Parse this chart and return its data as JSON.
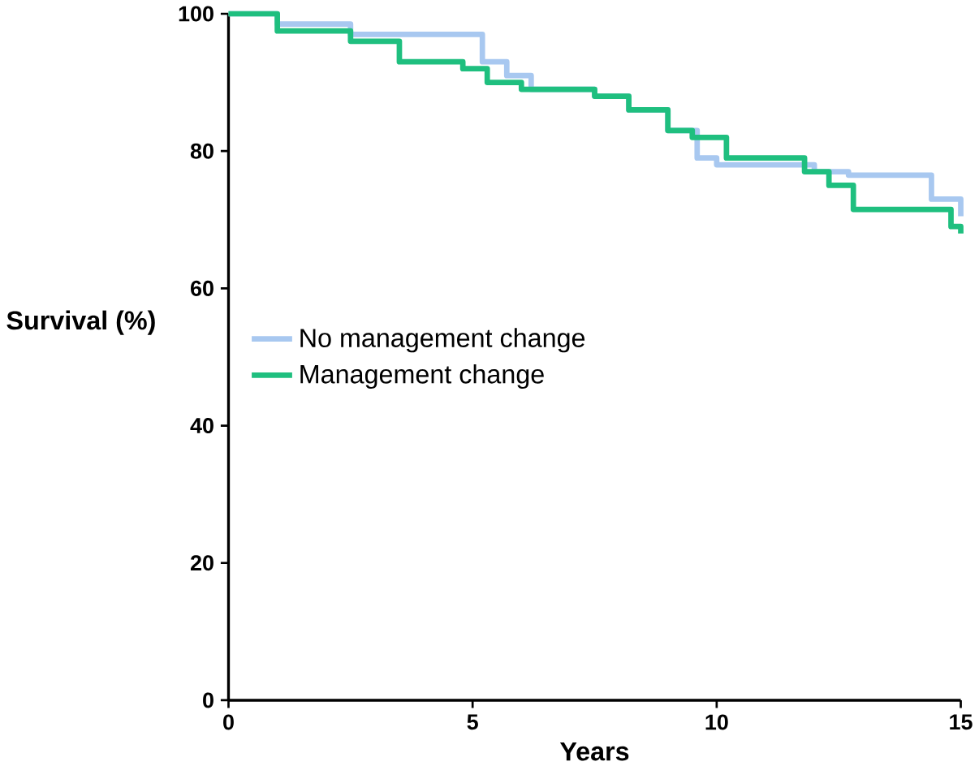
{
  "chart_data": {
    "type": "step",
    "xlabel": "Years",
    "ylabel": "Survival (%)",
    "xlim": [
      0,
      15
    ],
    "ylim": [
      0,
      100
    ],
    "xticks": [
      0,
      5,
      10,
      15
    ],
    "yticks": [
      0,
      20,
      40,
      60,
      80,
      100
    ],
    "legend": "left",
    "grid": false,
    "series": [
      {
        "name": "No management change",
        "color": "#a8c8f0",
        "x": [
          0,
          1,
          2.5,
          4.5,
          5.2,
          5.7,
          6.2,
          7.5,
          8.2,
          9,
          9.6,
          10,
          11.5,
          12,
          12.7,
          14.1,
          14.4,
          15
        ],
        "values": [
          100,
          98.5,
          97,
          97,
          93,
          91,
          89,
          88,
          86,
          83,
          79,
          78,
          78,
          77,
          76.5,
          76.5,
          73,
          70.5
        ]
      },
      {
        "name": "Management change",
        "color": "#1fbf7f",
        "x": [
          0,
          1,
          2.5,
          3.5,
          4.8,
          5.3,
          6,
          7.5,
          8.2,
          9,
          9.5,
          10.2,
          11,
          11.8,
          12.3,
          12.8,
          14.5,
          14.8,
          15
        ],
        "values": [
          100,
          97.5,
          96,
          93,
          92,
          90,
          89,
          88,
          86,
          83,
          82,
          79,
          79,
          77,
          75,
          71.5,
          71.5,
          69,
          68
        ]
      }
    ]
  }
}
